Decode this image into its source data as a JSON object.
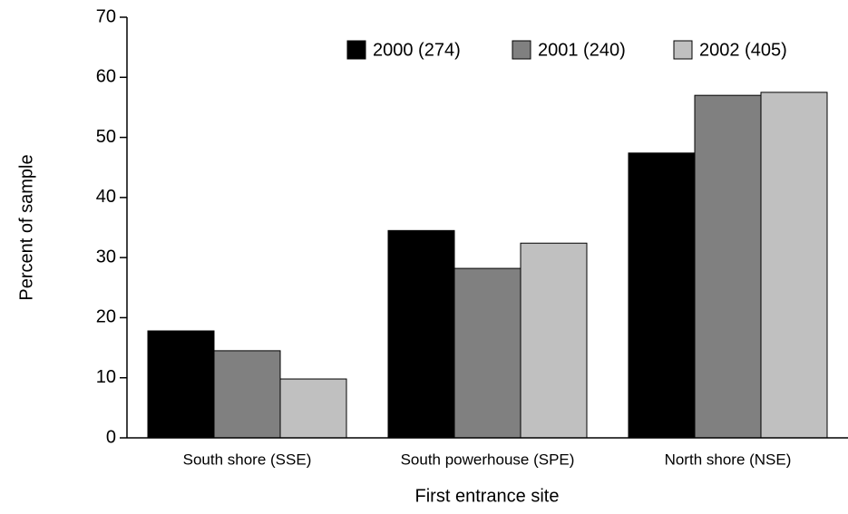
{
  "chart_data": {
    "type": "bar",
    "x_label": "First entrance site",
    "y_label": "Percent of sample",
    "categories": [
      "South shore (SSE)",
      "South powerhouse (SPE)",
      "North shore (NSE)"
    ],
    "series": [
      {
        "name": "2000 (274)",
        "color": "#000000",
        "values": [
          17.8,
          34.5,
          47.4
        ]
      },
      {
        "name": "2001 (240)",
        "color": "#808080",
        "values": [
          14.5,
          28.2,
          57.0
        ]
      },
      {
        "name": "2002 (405)",
        "color": "#c0c0c0",
        "values": [
          9.8,
          32.4,
          57.5
        ]
      }
    ],
    "ylim": [
      0,
      70
    ],
    "yticks": [
      0,
      10,
      20,
      30,
      40,
      50,
      60,
      70
    ],
    "grid": false,
    "legend": "top-right"
  }
}
